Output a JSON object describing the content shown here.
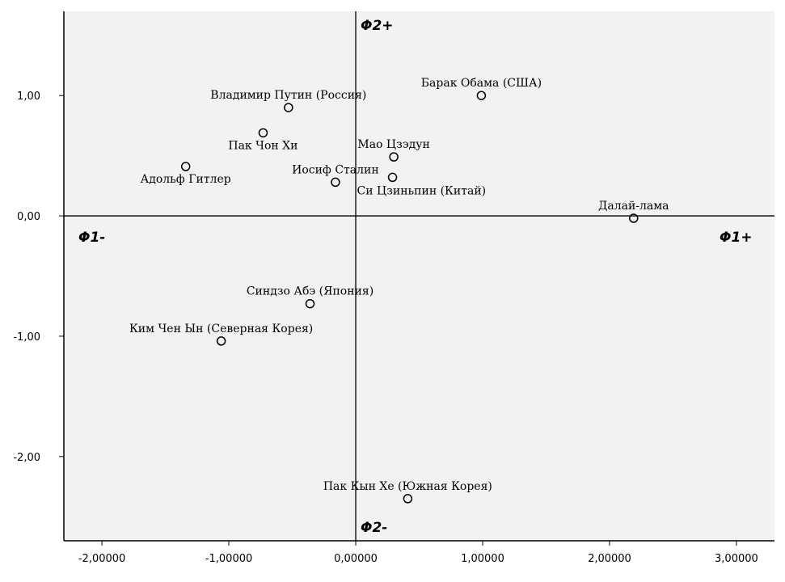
{
  "colors": {
    "plot_background": "#f2f2f2",
    "marker": "#000000",
    "axis": "#000000"
  },
  "chart_data": {
    "type": "scatter",
    "xlim": [
      -2.3,
      3.3
    ],
    "ylim": [
      -2.7,
      1.7
    ],
    "x_ticks": [
      -2,
      -1,
      0,
      1,
      2,
      3
    ],
    "x_tick_labels": [
      "-2,00000",
      "-1,00000",
      "0,00000",
      "1,00000",
      "2,00000",
      "3,00000"
    ],
    "y_ticks": [
      1,
      0,
      -1,
      -2
    ],
    "y_tick_labels": [
      "1,00",
      "0,00",
      "-1,00",
      "-2,00"
    ],
    "reference_lines": {
      "x": 0,
      "y": 0
    },
    "grid": false,
    "marker": "open circle",
    "quadrant_labels": {
      "top": "Φ2+",
      "bottom": "Φ2-",
      "left": "Φ1-",
      "right": "Φ1+"
    },
    "points": [
      {
        "label": "Барак Обама (США)",
        "x": 0.99,
        "y": 1.0,
        "label_pos": "above"
      },
      {
        "label": "Владимир Путин (Россия)",
        "x": -0.53,
        "y": 0.9,
        "label_pos": "above"
      },
      {
        "label": "Пак Чон Хи",
        "x": -0.73,
        "y": 0.69,
        "label_pos": "below"
      },
      {
        "label": "Мао Цзэдун",
        "x": 0.3,
        "y": 0.49,
        "label_pos": "above"
      },
      {
        "label": "Адольф Гитлер",
        "x": -1.34,
        "y": 0.41,
        "label_pos": "below"
      },
      {
        "label": "Си Цзиньпин (Китай)",
        "x": 0.29,
        "y": 0.32,
        "label_pos": "below-right"
      },
      {
        "label": "Иосиф Сталин",
        "x": -0.16,
        "y": 0.28,
        "label_pos": "above"
      },
      {
        "label": "Далай-лама",
        "x": 2.19,
        "y": -0.02,
        "label_pos": "above"
      },
      {
        "label": "Синдзо Абэ (Япония)",
        "x": -0.36,
        "y": -0.73,
        "label_pos": "above"
      },
      {
        "label": "Ким Чен Ын (Северная Корея)",
        "x": -1.06,
        "y": -1.04,
        "label_pos": "above"
      },
      {
        "label": "Пак Кын Хе (Южная Корея)",
        "x": 0.41,
        "y": -2.35,
        "label_pos": "above"
      }
    ]
  }
}
